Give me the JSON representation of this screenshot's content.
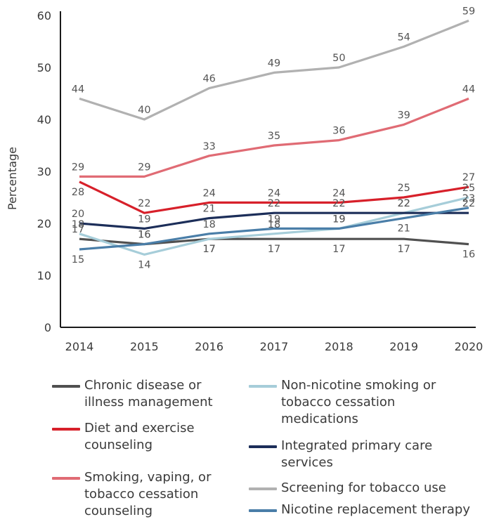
{
  "chart_data": {
    "type": "line",
    "title": "",
    "xlabel": "",
    "ylabel": "Percentage",
    "ylim": [
      0,
      60
    ],
    "yticks": [
      0,
      10,
      20,
      30,
      40,
      50,
      60
    ],
    "x": [
      "2014",
      "2015",
      "2016",
      "2017",
      "2018",
      "2019",
      "2020"
    ],
    "grid": false,
    "legend_position": "bottom",
    "series": [
      {
        "name": "Chronic disease or illness management",
        "color": "#505050",
        "values": [
          17,
          16,
          17,
          17,
          17,
          17,
          16
        ]
      },
      {
        "name": "Diet and exercise counseling",
        "color": "#d7202a",
        "values": [
          28,
          22,
          24,
          24,
          24,
          25,
          27
        ]
      },
      {
        "name": "Smoking, vaping, or tobacco cessation counseling",
        "color": "#e06b74",
        "values": [
          29,
          29,
          33,
          35,
          36,
          39,
          44
        ]
      },
      {
        "name": "Non-nicotine smoking or tobacco cessation medications",
        "color": "#a6cdd9",
        "values": [
          18,
          14,
          17,
          18,
          19,
          22,
          25
        ]
      },
      {
        "name": "Integrated primary care services",
        "color": "#1c2e59",
        "values": [
          20,
          19,
          21,
          22,
          22,
          22,
          22
        ]
      },
      {
        "name": "Screening for tobacco use",
        "color": "#b1b1b1",
        "values": [
          44,
          40,
          46,
          49,
          50,
          54,
          59
        ]
      },
      {
        "name": "Nicotine replacement therapy",
        "color": "#4a7ea8",
        "values": [
          15,
          16,
          18,
          19,
          19,
          21,
          23
        ]
      }
    ]
  }
}
